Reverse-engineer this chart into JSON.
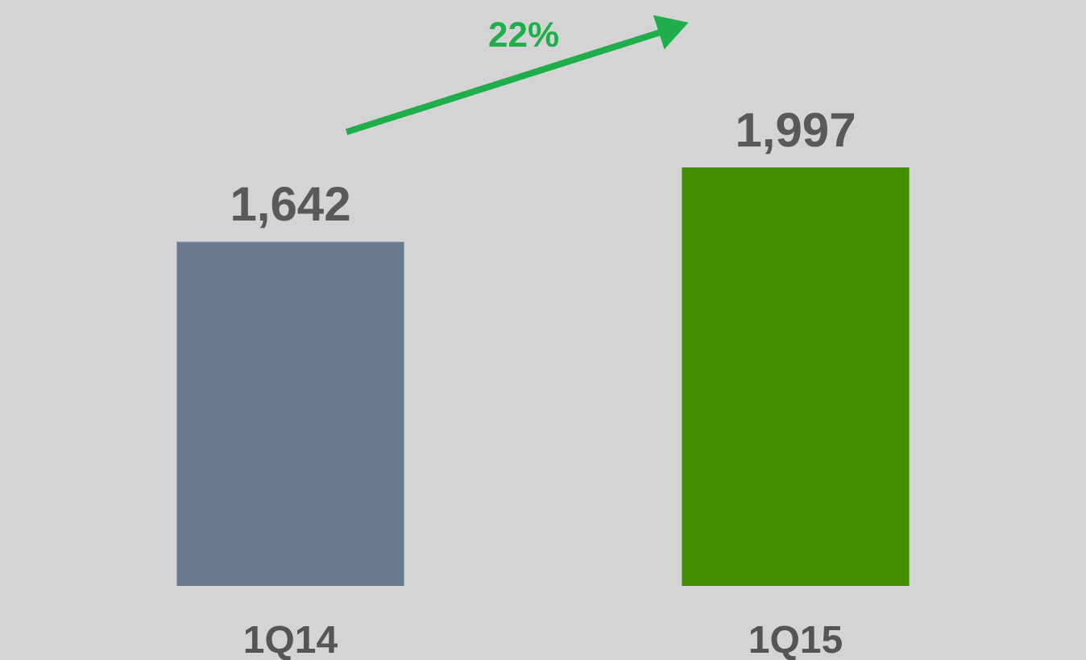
{
  "chart_data": {
    "type": "bar",
    "categories": [
      "1Q14",
      "1Q15"
    ],
    "values": [
      1642,
      1997
    ],
    "colors": [
      "#6a7a90",
      "#3f8f00"
    ],
    "value_labels": [
      "1,642",
      "1,997"
    ],
    "annotations": [
      "22%"
    ],
    "grid": false
  }
}
